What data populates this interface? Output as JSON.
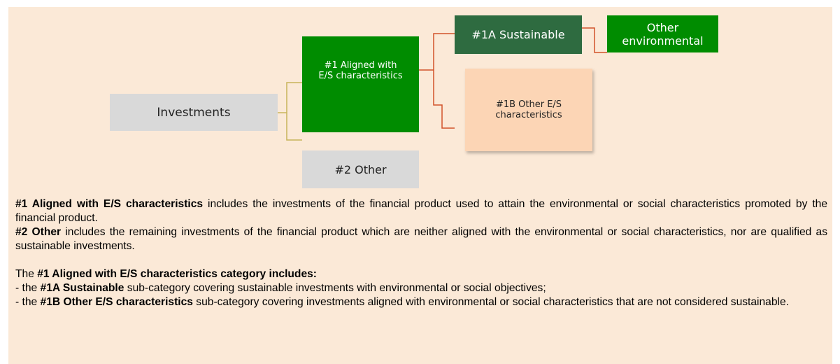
{
  "nodes": [
    {
      "label": "Investments"
    },
    {
      "label": "#1 Aligned with E/S characteristics"
    },
    {
      "label": "#1A Sustainable"
    },
    {
      "label": "Other environmental"
    },
    {
      "label": "#1B Other E/S characteristics"
    },
    {
      "label": "#2 Other"
    }
  ],
  "paragraphs": [
    [
      {
        "text": "#1 Aligned with E/S characteristics",
        "bold": true
      },
      {
        "text": " includes the investments of the financial product used to attain the environmental or social characteristics promoted by the financial product.",
        "bold": false
      }
    ],
    [
      {
        "text": "#2 Other",
        "bold": true
      },
      {
        "text": " includes the remaining investments of the financial product which are neither aligned with the environmental or social characteristics, nor are qualified as sustainable investments.",
        "bold": false
      }
    ],
    [
      {
        "text": "The ",
        "bold": false
      },
      {
        "text": "#1 Aligned with E/S characteristics category includes:",
        "bold": true
      }
    ],
    [
      {
        "text": "- the ",
        "bold": false
      },
      {
        "text": "#1A Sustainable",
        "bold": true
      },
      {
        "text": " sub-category covering sustainable investments with environmental or social objectives;",
        "bold": false
      }
    ],
    [
      {
        "text": "- the ",
        "bold": false
      },
      {
        "text": "#1B Other E/S characteristics",
        "bold": true
      },
      {
        "text": " sub-category covering investments aligned with environmental or social characteristics that are not considered sustainable.",
        "bold": false
      }
    ]
  ]
}
